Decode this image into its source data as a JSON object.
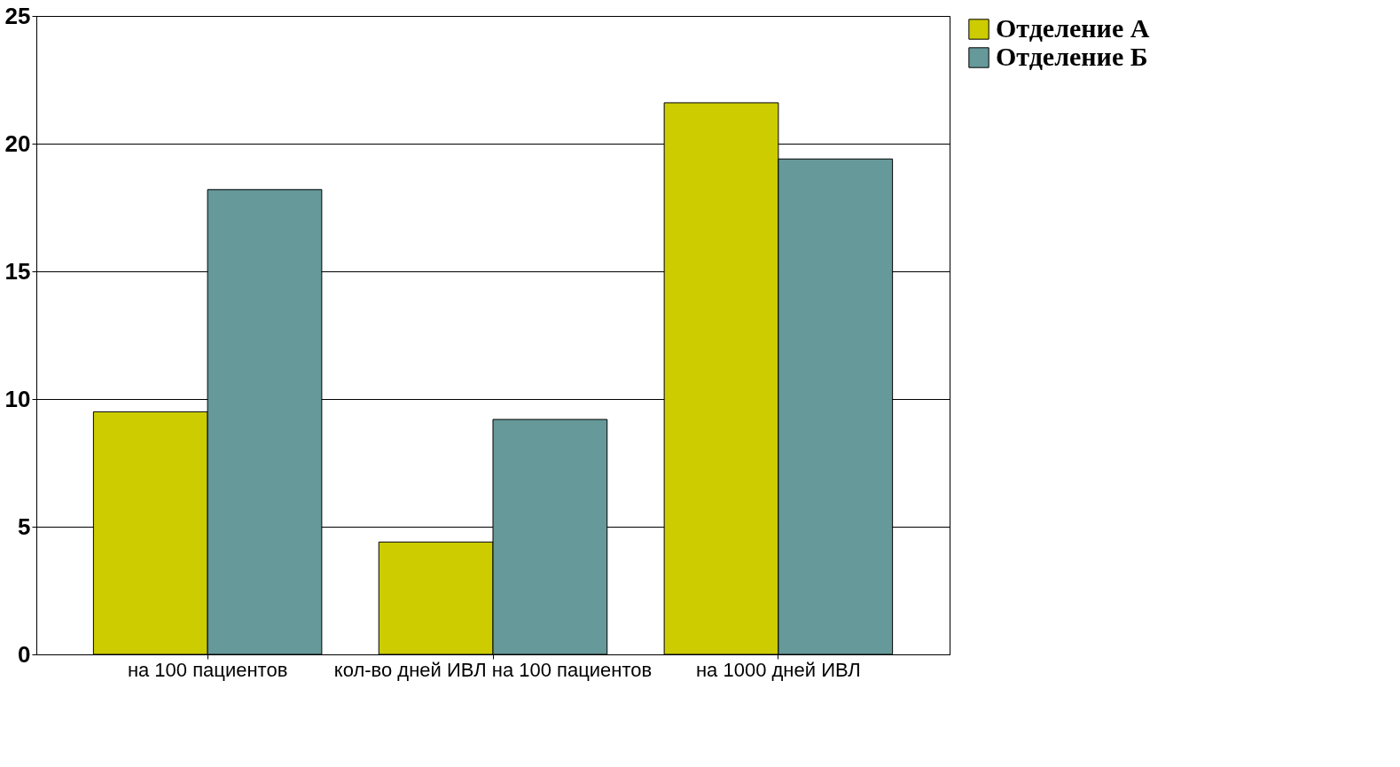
{
  "chart_data": {
    "type": "bar",
    "categories": [
      "на 100 пациентов",
      "кол-во дней ИВЛ на 100 пациентов",
      "на 1000 дней ИВЛ"
    ],
    "series": [
      {
        "name": "Отделение А",
        "color": "#cccc00",
        "values": [
          9.5,
          4.4,
          21.6
        ]
      },
      {
        "name": "Отделение Б",
        "color": "#669999",
        "values": [
          18.2,
          9.2,
          19.4
        ]
      }
    ],
    "ylim": [
      0,
      25
    ],
    "yticks": [
      0,
      5,
      10,
      15,
      20,
      25
    ],
    "grid": "y",
    "legend": "right"
  }
}
